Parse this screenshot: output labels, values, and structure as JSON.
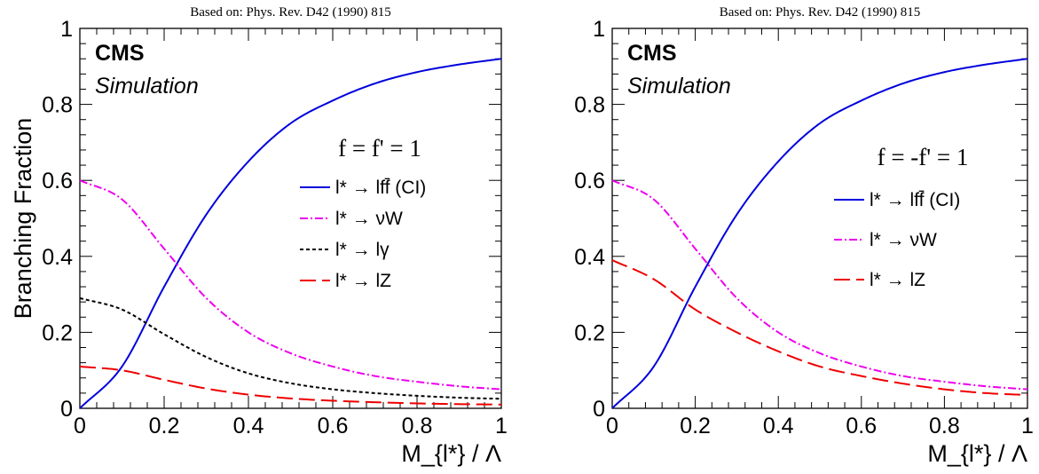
{
  "chart_data": [
    {
      "type": "line",
      "source_note": "Based on: Phys. Rev. D42 (1990) 815",
      "experiment": "CMS",
      "status": "Simulation",
      "coupling": "f = f' = 1",
      "xlabel": "M_{l*} / Λ",
      "ylabel": "Branching Fraction",
      "xlim": [
        0,
        1
      ],
      "ylim": [
        0,
        1
      ],
      "xticks": [
        "0",
        "0.2",
        "0.4",
        "0.6",
        "0.8",
        "1"
      ],
      "yticks": [
        "0",
        "0.2",
        "0.4",
        "0.6",
        "0.8",
        "1"
      ],
      "legend_position": "right",
      "x": [
        0,
        0.1,
        0.2,
        0.3,
        0.4,
        0.5,
        0.6,
        0.7,
        0.8,
        0.9,
        1.0
      ],
      "series": [
        {
          "name": "l* → lff̄ (CI)",
          "color": "#0000dd",
          "style": "solid",
          "values": [
            0,
            0.11,
            0.32,
            0.51,
            0.65,
            0.75,
            0.81,
            0.855,
            0.885,
            0.905,
            0.92
          ]
        },
        {
          "name": "l* → νW",
          "color": "#ee00ee",
          "style": "dashdot",
          "values": [
            0.6,
            0.55,
            0.42,
            0.29,
            0.2,
            0.145,
            0.11,
            0.085,
            0.07,
            0.058,
            0.05
          ]
        },
        {
          "name": "l* → lγ",
          "color": "#000000",
          "style": "dotted",
          "values": [
            0.29,
            0.26,
            0.195,
            0.135,
            0.092,
            0.066,
            0.05,
            0.04,
            0.033,
            0.028,
            0.025
          ]
        },
        {
          "name": "l* → lZ",
          "color": "#ee0000",
          "style": "dashed",
          "values": [
            0.11,
            0.1,
            0.075,
            0.052,
            0.036,
            0.026,
            0.02,
            0.016,
            0.013,
            0.011,
            0.01
          ]
        }
      ]
    },
    {
      "type": "line",
      "source_note": "Based on: Phys. Rev. D42 (1990) 815",
      "experiment": "CMS",
      "status": "Simulation",
      "coupling": "f = -f' = 1",
      "xlabel": "M_{l*} / Λ",
      "ylabel": "",
      "xlim": [
        0,
        1
      ],
      "ylim": [
        0,
        1
      ],
      "xticks": [
        "0",
        "0.2",
        "0.4",
        "0.6",
        "0.8",
        "1"
      ],
      "yticks": [
        "0",
        "0.2",
        "0.4",
        "0.6",
        "0.8",
        "1"
      ],
      "legend_position": "right",
      "x": [
        0,
        0.1,
        0.2,
        0.3,
        0.4,
        0.5,
        0.6,
        0.7,
        0.8,
        0.9,
        1.0
      ],
      "series": [
        {
          "name": "l* → lff̄ (CI)",
          "color": "#0000dd",
          "style": "solid",
          "values": [
            0,
            0.11,
            0.32,
            0.51,
            0.65,
            0.75,
            0.81,
            0.855,
            0.885,
            0.905,
            0.92
          ]
        },
        {
          "name": "l* → νW",
          "color": "#ee00ee",
          "style": "dashdot",
          "values": [
            0.6,
            0.55,
            0.42,
            0.29,
            0.2,
            0.145,
            0.11,
            0.085,
            0.07,
            0.058,
            0.05
          ]
        },
        {
          "name": "l* → lZ",
          "color": "#ee0000",
          "style": "dashed",
          "values": [
            0.39,
            0.34,
            0.26,
            0.2,
            0.15,
            0.11,
            0.085,
            0.065,
            0.05,
            0.04,
            0.035
          ]
        }
      ]
    }
  ]
}
